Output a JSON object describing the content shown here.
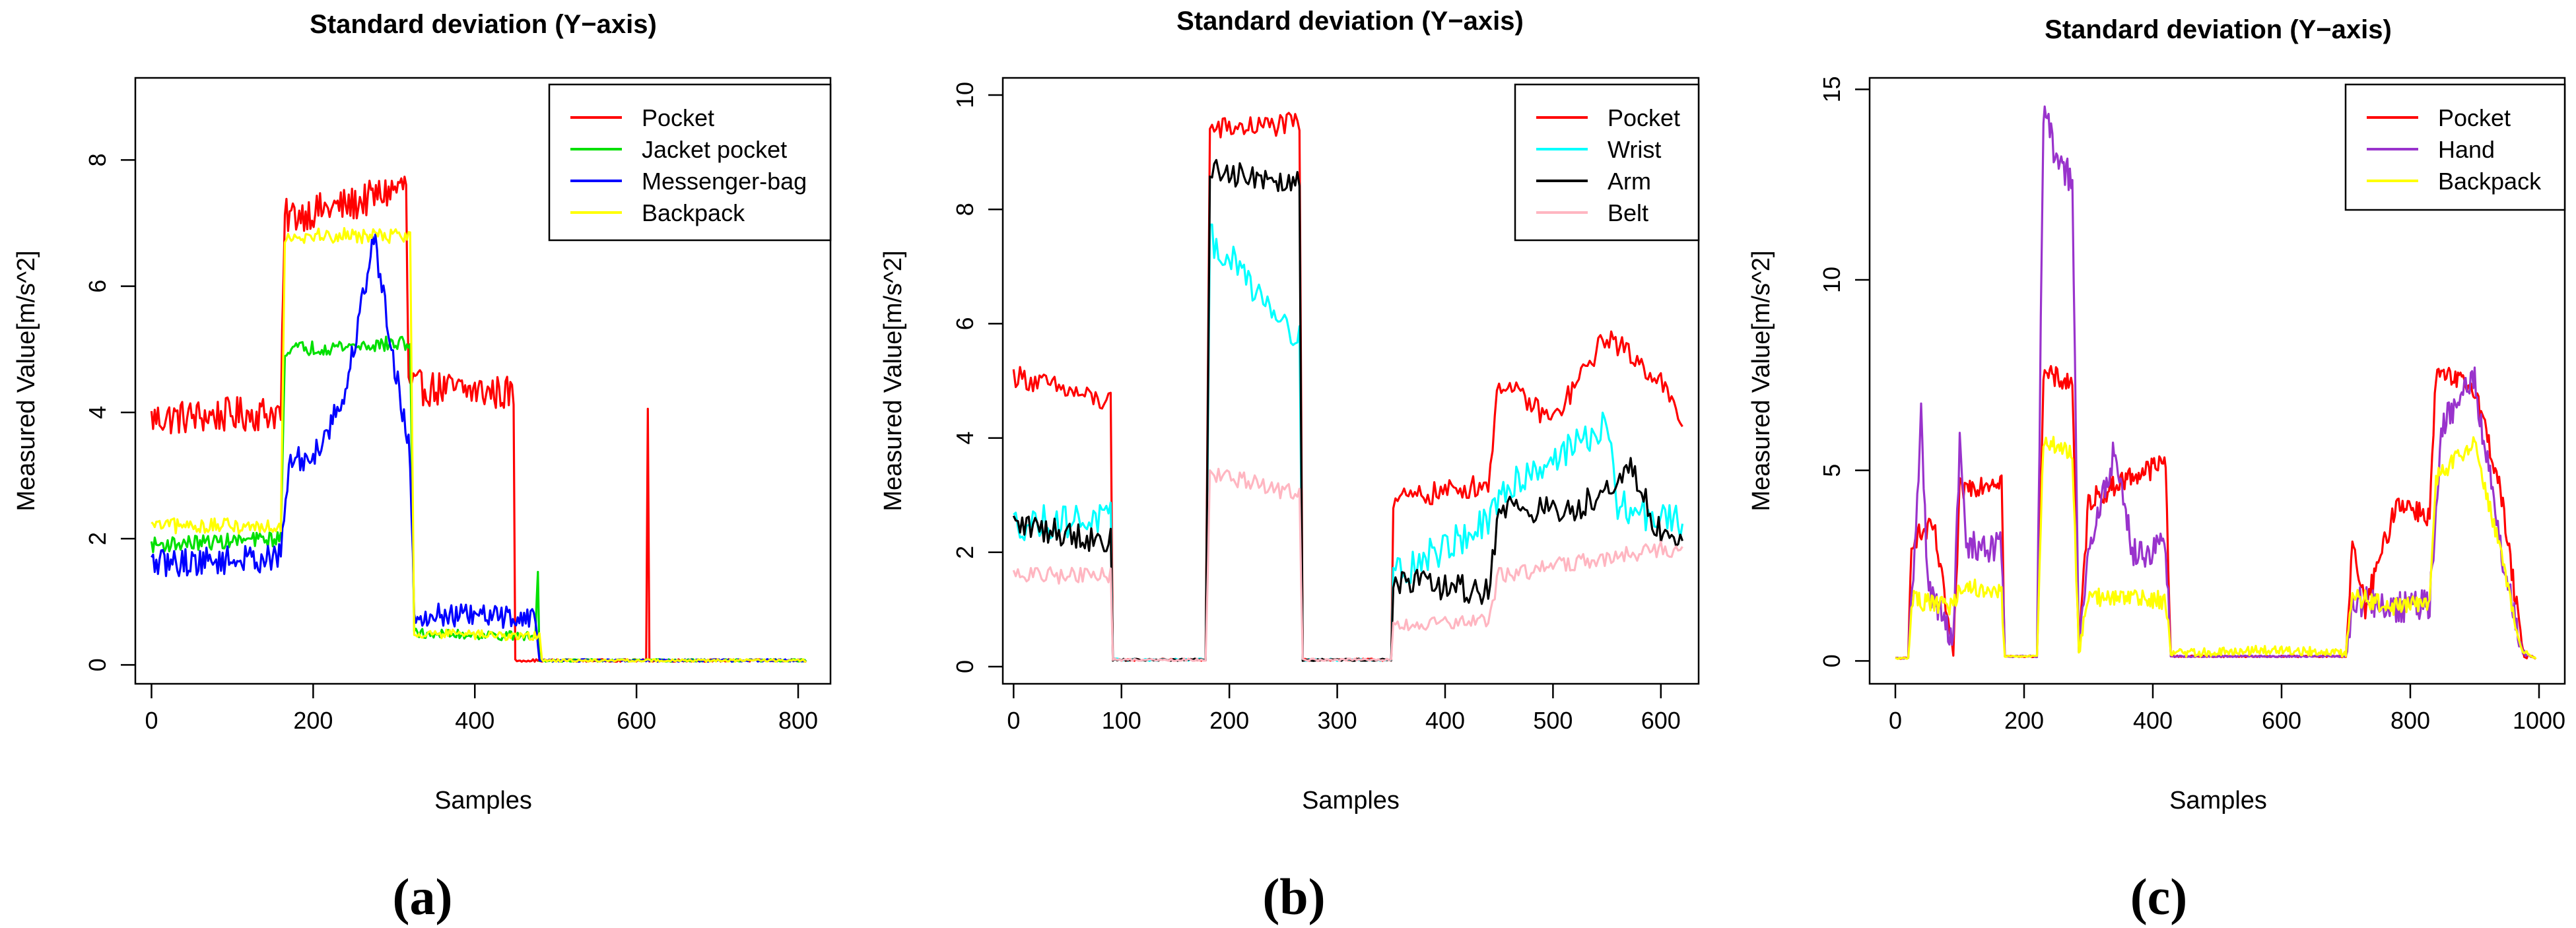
{
  "chart_data": [
    {
      "type": "line",
      "panel_label": "(a)",
      "title": "Standard deviation (Y−axis)",
      "xlabel": "Samples",
      "ylabel": "Measured Value[m/s^2]",
      "xlim": [
        -20,
        840
      ],
      "ylim": [
        -0.3,
        9.3
      ],
      "xticks": [
        0,
        200,
        400,
        600,
        800
      ],
      "yticks": [
        0,
        2,
        4,
        6,
        8
      ],
      "legend_position": "top-right",
      "series": [
        {
          "name": "Pocket",
          "color": "#ff0000",
          "jitter": 0.28,
          "points": [
            [
              0,
              3.9
            ],
            [
              160,
              4.0
            ],
            [
              165,
              7.1
            ],
            [
              250,
              7.3
            ],
            [
              315,
              7.6
            ],
            [
              318,
              4.4
            ],
            [
              448,
              4.3
            ],
            [
              450,
              0.05
            ],
            [
              612,
              0.05
            ],
            [
              614,
              3.8
            ],
            [
              616,
              0.05
            ],
            [
              810,
              0.05
            ]
          ]
        },
        {
          "name": "Jacket pocket",
          "color": "#00e000",
          "jitter": 0.12,
          "points": [
            [
              0,
              1.9
            ],
            [
              160,
              2.0
            ],
            [
              165,
              5.0
            ],
            [
              320,
              5.1
            ],
            [
              325,
              0.5
            ],
            [
              475,
              0.45
            ],
            [
              478,
              1.5
            ],
            [
              480,
              0.05
            ],
            [
              810,
              0.05
            ]
          ]
        },
        {
          "name": "Messenger-bag",
          "color": "#0000ff",
          "jitter": 0.22,
          "points": [
            [
              0,
              1.6
            ],
            [
              160,
              1.7
            ],
            [
              170,
              3.2
            ],
            [
              200,
              3.3
            ],
            [
              240,
              4.3
            ],
            [
              275,
              6.8
            ],
            [
              295,
              5.2
            ],
            [
              320,
              3.3
            ],
            [
              325,
              0.8
            ],
            [
              475,
              0.75
            ],
            [
              480,
              0.05
            ],
            [
              810,
              0.05
            ]
          ]
        },
        {
          "name": "Backpack",
          "color": "#ffff00",
          "jitter": 0.12,
          "points": [
            [
              0,
              2.2
            ],
            [
              160,
              2.2
            ],
            [
              165,
              6.8
            ],
            [
              320,
              6.8
            ],
            [
              325,
              0.5
            ],
            [
              480,
              0.45
            ],
            [
              483,
              0.05
            ],
            [
              810,
              0.05
            ]
          ]
        }
      ]
    },
    {
      "type": "line",
      "panel_label": "(b)",
      "title": "Standard deviation (Y−axis)",
      "xlabel": "Samples",
      "ylabel": "Measured Value[m/s^2]",
      "xlim": [
        -10,
        635
      ],
      "ylim": [
        -0.3,
        10.3
      ],
      "xticks": [
        0,
        100,
        200,
        300,
        400,
        500,
        600
      ],
      "yticks": [
        0,
        2,
        4,
        6,
        8,
        10
      ],
      "legend_position": "top-right",
      "series": [
        {
          "name": "Pocket",
          "color": "#ff0000",
          "jitter": 0.2,
          "points": [
            [
              0,
              5.1
            ],
            [
              90,
              4.6
            ],
            [
              92,
              0.1
            ],
            [
              178,
              0.1
            ],
            [
              182,
              9.4
            ],
            [
              265,
              9.5
            ],
            [
              268,
              0.1
            ],
            [
              350,
              0.1
            ],
            [
              352,
              2.9
            ],
            [
              440,
              3.2
            ],
            [
              450,
              5.0
            ],
            [
              500,
              4.3
            ],
            [
              550,
              5.8
            ],
            [
              600,
              5.0
            ],
            [
              620,
              4.2
            ]
          ]
        },
        {
          "name": "Wrist",
          "color": "#00ffff",
          "jitter": 0.3,
          "points": [
            [
              0,
              2.5
            ],
            [
              90,
              2.6
            ],
            [
              92,
              0.1
            ],
            [
              178,
              0.1
            ],
            [
              182,
              7.5
            ],
            [
              265,
              5.8
            ],
            [
              268,
              0.1
            ],
            [
              350,
              0.1
            ],
            [
              352,
              1.6
            ],
            [
              440,
              2.5
            ],
            [
              460,
              3.2
            ],
            [
              550,
              4.2
            ],
            [
              560,
              2.8
            ],
            [
              620,
              2.5
            ]
          ]
        },
        {
          "name": "Arm",
          "color": "#000000",
          "jitter": 0.25,
          "points": [
            [
              0,
              2.5
            ],
            [
              90,
              2.2
            ],
            [
              92,
              0.1
            ],
            [
              178,
              0.1
            ],
            [
              182,
              8.7
            ],
            [
              265,
              8.5
            ],
            [
              268,
              0.1
            ],
            [
              350,
              0.1
            ],
            [
              352,
              1.5
            ],
            [
              440,
              1.3
            ],
            [
              450,
              2.8
            ],
            [
              520,
              2.7
            ],
            [
              570,
              3.5
            ],
            [
              600,
              2.3
            ],
            [
              620,
              2.2
            ]
          ]
        },
        {
          "name": "Belt",
          "color": "#ffb6c1",
          "jitter": 0.15,
          "points": [
            [
              0,
              1.6
            ],
            [
              90,
              1.6
            ],
            [
              92,
              0.1
            ],
            [
              178,
              0.1
            ],
            [
              182,
              3.4
            ],
            [
              265,
              3.0
            ],
            [
              268,
              0.1
            ],
            [
              350,
              0.1
            ],
            [
              352,
              0.7
            ],
            [
              440,
              0.8
            ],
            [
              450,
              1.6
            ],
            [
              620,
              2.1
            ]
          ]
        }
      ]
    },
    {
      "type": "line",
      "panel_label": "(c)",
      "title": "Standard deviation (Y−axis)",
      "xlabel": "Samples",
      "ylabel": "Measured Value[m/s^2]",
      "xlim": [
        -40,
        1040
      ],
      "ylim": [
        -0.6,
        15.3
      ],
      "xticks": [
        0,
        200,
        400,
        600,
        800,
        1000
      ],
      "yticks": [
        0,
        5,
        10,
        15
      ],
      "legend_position": "top-right",
      "series": [
        {
          "name": "Pocket",
          "color": "#ff0000",
          "jitter": 0.3,
          "points": [
            [
              0,
              0.05
            ],
            [
              20,
              0.05
            ],
            [
              25,
              3.2
            ],
            [
              60,
              3.5
            ],
            [
              90,
              0.1
            ],
            [
              100,
              4.5
            ],
            [
              165,
              4.8
            ],
            [
              170,
              0.1
            ],
            [
              220,
              0.1
            ],
            [
              230,
              7.5
            ],
            [
              275,
              7.3
            ],
            [
              285,
              0.2
            ],
            [
              300,
              4.2
            ],
            [
              360,
              4.8
            ],
            [
              420,
              5.2
            ],
            [
              428,
              0.1
            ],
            [
              700,
              0.1
            ],
            [
              710,
              3.0
            ],
            [
              730,
              1.4
            ],
            [
              780,
              4.2
            ],
            [
              830,
              3.8
            ],
            [
              840,
              7.5
            ],
            [
              900,
              7.2
            ],
            [
              940,
              4.5
            ],
            [
              975,
              0.2
            ],
            [
              995,
              0.05
            ]
          ]
        },
        {
          "name": "Hand",
          "color": "#9933cc",
          "jitter": 0.4,
          "points": [
            [
              0,
              0.05
            ],
            [
              20,
              0.05
            ],
            [
              30,
              3.0
            ],
            [
              40,
              6.5
            ],
            [
              50,
              2.0
            ],
            [
              90,
              0.5
            ],
            [
              100,
              5.8
            ],
            [
              110,
              3.0
            ],
            [
              165,
              3.0
            ],
            [
              170,
              0.1
            ],
            [
              220,
              0.1
            ],
            [
              230,
              14.5
            ],
            [
              250,
              13.2
            ],
            [
              275,
              12.6
            ],
            [
              285,
              0.2
            ],
            [
              300,
              2.8
            ],
            [
              340,
              5.5
            ],
            [
              370,
              2.8
            ],
            [
              420,
              3.0
            ],
            [
              428,
              0.1
            ],
            [
              700,
              0.1
            ],
            [
              710,
              1.6
            ],
            [
              780,
              1.4
            ],
            [
              830,
              1.5
            ],
            [
              850,
              6.2
            ],
            [
              900,
              7.4
            ],
            [
              940,
              3.0
            ],
            [
              975,
              0.2
            ],
            [
              995,
              0.05
            ]
          ]
        },
        {
          "name": "Backpack",
          "color": "#ffff00",
          "jitter": 0.25,
          "points": [
            [
              0,
              0.05
            ],
            [
              20,
              0.05
            ],
            [
              25,
              1.6
            ],
            [
              90,
              1.4
            ],
            [
              100,
              2.0
            ],
            [
              165,
              1.8
            ],
            [
              170,
              0.1
            ],
            [
              220,
              0.1
            ],
            [
              230,
              5.8
            ],
            [
              275,
              5.4
            ],
            [
              285,
              0.2
            ],
            [
              300,
              1.7
            ],
            [
              420,
              1.6
            ],
            [
              428,
              0.2
            ],
            [
              600,
              0.3
            ],
            [
              700,
              0.2
            ],
            [
              710,
              1.7
            ],
            [
              780,
              1.4
            ],
            [
              830,
              1.6
            ],
            [
              840,
              4.8
            ],
            [
              900,
              5.8
            ],
            [
              940,
              2.8
            ],
            [
              975,
              0.2
            ],
            [
              995,
              0.05
            ]
          ]
        }
      ]
    }
  ]
}
